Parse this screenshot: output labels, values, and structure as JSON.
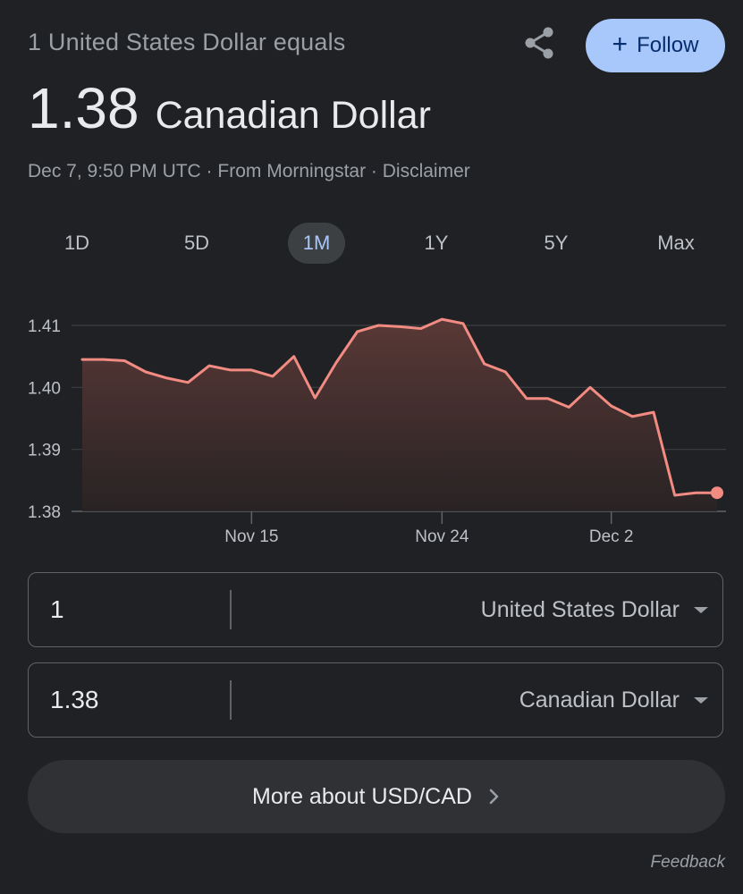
{
  "header": {
    "subtitle": "1 United States Dollar equals",
    "follow_label": "Follow"
  },
  "quote": {
    "price": "1.38",
    "currency": "Canadian Dollar",
    "meta": "Dec 7, 9:50 PM UTC · From Morningstar · Disclaimer"
  },
  "tabs": [
    {
      "label": "1D",
      "active": false
    },
    {
      "label": "5D",
      "active": false
    },
    {
      "label": "1M",
      "active": true
    },
    {
      "label": "1Y",
      "active": false
    },
    {
      "label": "5Y",
      "active": false
    },
    {
      "label": "Max",
      "active": false
    }
  ],
  "chart_data": {
    "type": "area",
    "ylim": [
      1.38,
      1.41
    ],
    "y_ticks": [
      "1.41",
      "1.40",
      "1.39",
      "1.38"
    ],
    "x_ticks": [
      {
        "label": "Nov 15",
        "index": 8
      },
      {
        "label": "Nov 24",
        "index": 17
      },
      {
        "label": "Dec 2",
        "index": 25
      }
    ],
    "series": [
      {
        "values": [
          1.4045,
          1.4045,
          1.4043,
          1.4025,
          1.4015,
          1.4008,
          1.4035,
          1.4028,
          1.4028,
          1.4018,
          1.405,
          1.3983,
          1.404,
          1.409,
          1.41,
          1.4098,
          1.4095,
          1.411,
          1.4103,
          1.4038,
          1.4025,
          1.3982,
          1.3982,
          1.3968,
          1.4,
          1.397,
          1.3953,
          1.396,
          1.3826,
          1.383,
          1.383
        ]
      }
    ],
    "colors": {
      "line": "#f28b82",
      "fill_top": "#5c3a37",
      "grid": "#3c4043",
      "axis_text": "#bdc1c6"
    }
  },
  "converter": {
    "from": {
      "amount": "1",
      "unit": "United States Dollar"
    },
    "to": {
      "amount": "1.38",
      "unit": "Canadian Dollar"
    }
  },
  "more_label": "More about USD/CAD",
  "feedback_label": "Feedback"
}
